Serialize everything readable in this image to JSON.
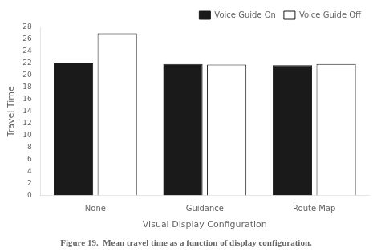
{
  "chart_data": {
    "type": "bar",
    "caption": "Figure 19.  Mean travel time as a function of display configuration.",
    "xlabel": "Visual Display Configuration",
    "ylabel": "Travel Time",
    "categories": [
      "None",
      "Guidance",
      "Route Map"
    ],
    "series": [
      {
        "name": "Voice Guide On",
        "color": "#1a1a1a",
        "values": [
          22.0,
          21.9,
          21.7
        ]
      },
      {
        "name": "Voice Guide Off",
        "color": "#ffffff",
        "values": [
          27.0,
          21.8,
          21.9
        ]
      }
    ],
    "ylim": [
      0,
      28
    ],
    "yticks": [
      0,
      2,
      4,
      6,
      8,
      10,
      12,
      14,
      16,
      18,
      20,
      22,
      24,
      26,
      28
    ],
    "grid": false,
    "legend": "upper right"
  }
}
